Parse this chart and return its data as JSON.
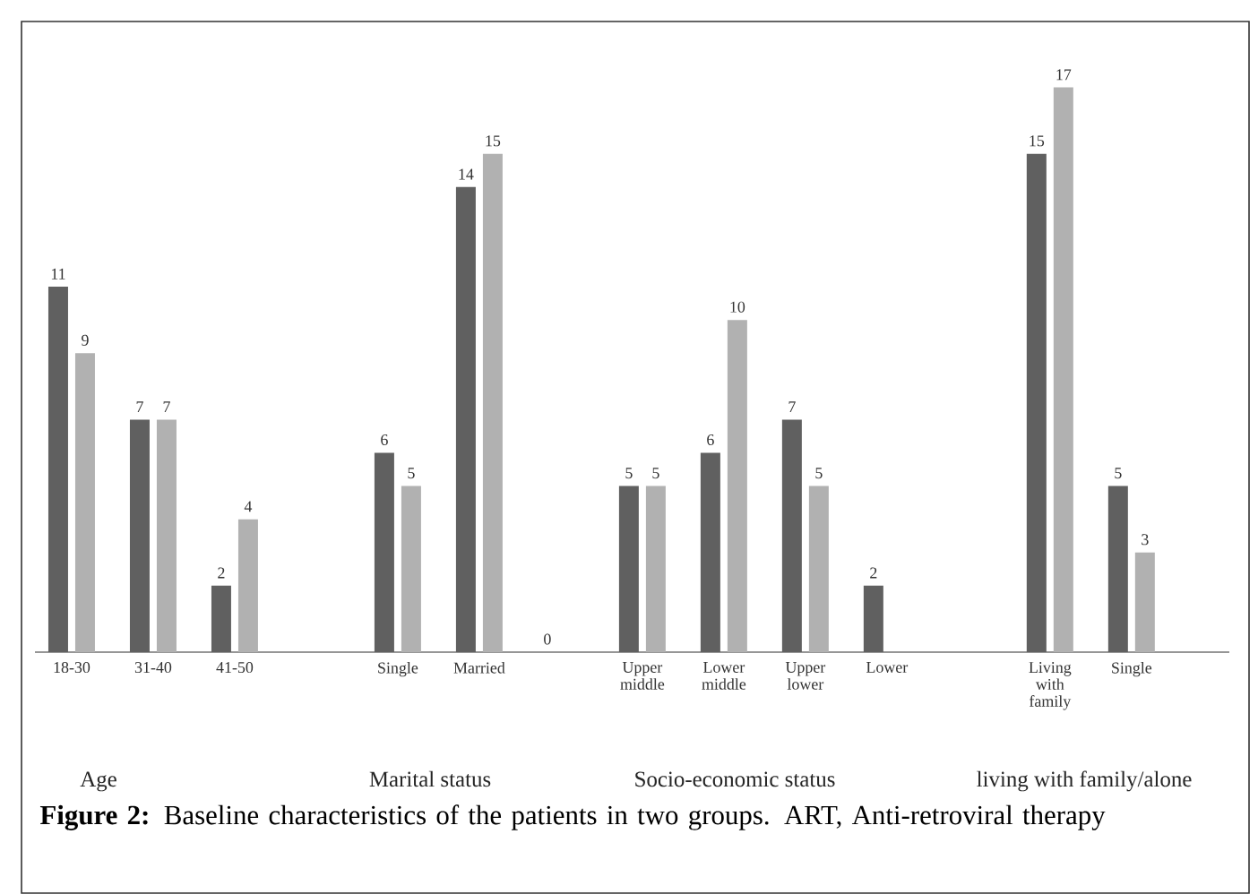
{
  "chart_data": {
    "type": "bar",
    "categories": [
      "18-30",
      "31-40",
      "41-50",
      null,
      "Single",
      "Married",
      null,
      "Upper middle",
      "Lower middle",
      "Upper lower",
      "Lower",
      null,
      "Living with family",
      "Single"
    ],
    "series": [
      {
        "color": "#606060",
        "values": [
          11,
          7,
          2,
          null,
          6,
          14,
          0,
          5,
          6,
          7,
          2,
          null,
          15,
          5
        ]
      },
      {
        "color": "#b1b1b1",
        "values": [
          9,
          7,
          4,
          null,
          5,
          15,
          null,
          5,
          10,
          5,
          null,
          null,
          17,
          3
        ]
      }
    ],
    "tick_labels": "x",
    "data_labels": true,
    "grid": false,
    "annotations": [
      "Age",
      "Marital status",
      "Socio-economic status",
      "living with family/alone",
      "**Figure 2:** Baseline characteristics of the patients in two groups. ART, Anti-retroviral therapy"
    ]
  }
}
